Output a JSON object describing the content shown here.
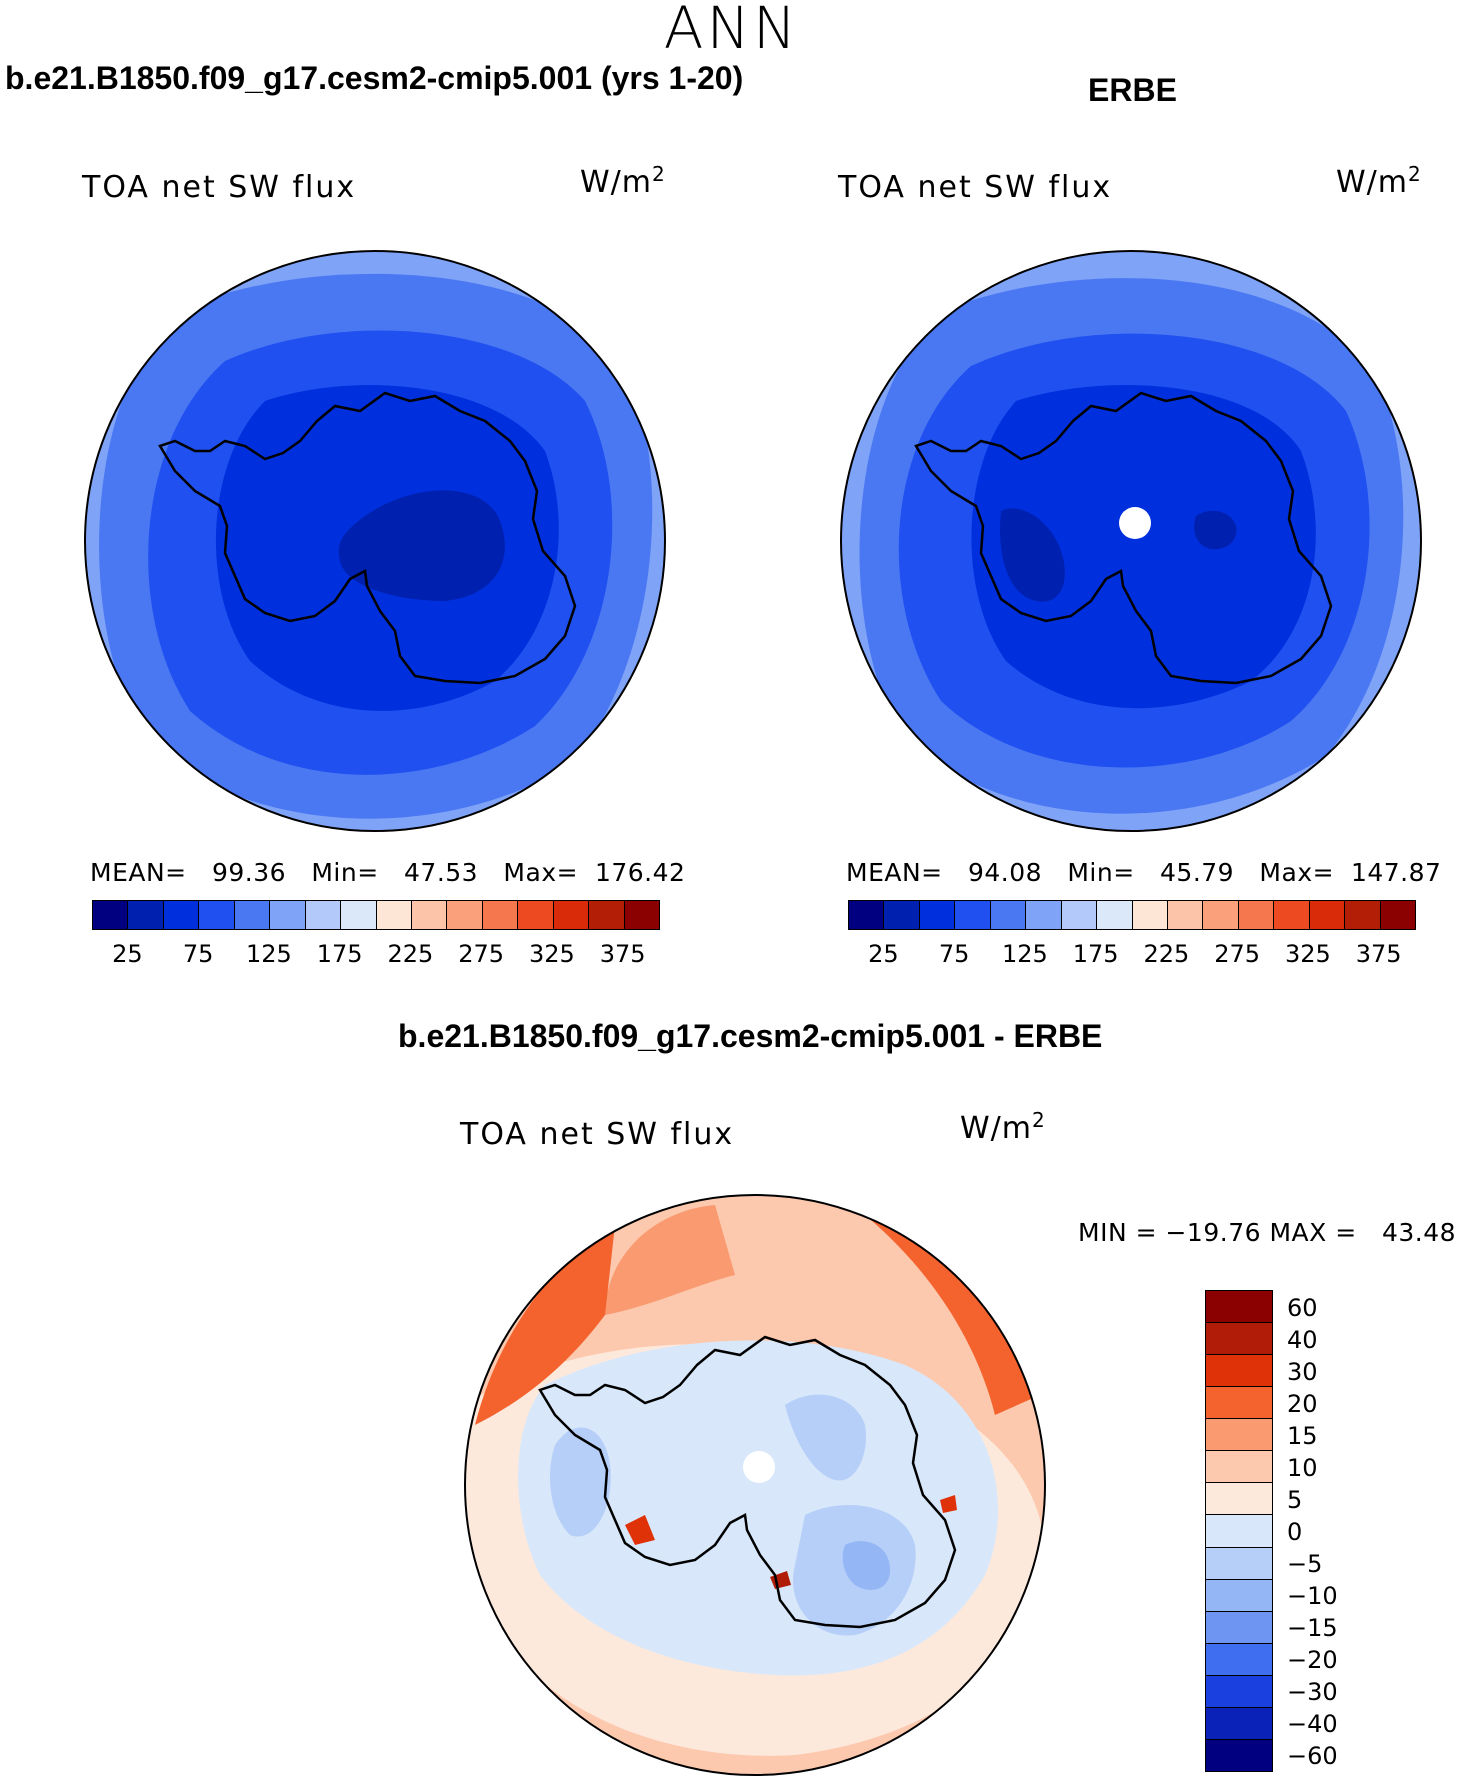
{
  "figure": {
    "season": "ANN",
    "case_title": "b.e21.B1850.f09_g17.cesm2-cmip5.001 (yrs 1-20)",
    "obs_title": "ERBE",
    "diff_title": "b.e21.B1850.f09_g17.cesm2-cmip5.001 - ERBE"
  },
  "panels": {
    "model": {
      "variable": "TOA net SW flux",
      "units_base": "W/m",
      "units_exp": "2",
      "stats": "MEAN=   99.36   Min=   47.53   Max=  176.42"
    },
    "obs": {
      "variable": "TOA net SW flux",
      "units_base": "W/m",
      "units_exp": "2",
      "stats": "MEAN=   94.08   Min=   45.79   Max=  147.87"
    },
    "diff": {
      "variable": "TOA net SW flux",
      "units_base": "W/m",
      "units_exp": "2",
      "stats": "MIN = −19.76 MAX =   43.48"
    }
  },
  "colorbars": {
    "abs": {
      "colors": [
        "#000080",
        "#0020b0",
        "#0030dd",
        "#2050f0",
        "#4a78f2",
        "#7fa3f7",
        "#b3c9f9",
        "#dbe8fa",
        "#fde6d6",
        "#fcc4a8",
        "#faa07a",
        "#f5774e",
        "#ee4a22",
        "#d92a0a",
        "#b31e06",
        "#8b0000"
      ],
      "ticks": [
        "25",
        "75",
        "125",
        "175",
        "225",
        "275",
        "325",
        "375"
      ]
    },
    "diff": {
      "colors": [
        "#8b0000",
        "#b01c08",
        "#e03208",
        "#f4632e",
        "#f99a70",
        "#fcc8ae",
        "#fde9dc",
        "#d8e8fa",
        "#b6cff8",
        "#94b6f5",
        "#6e95f1",
        "#3f6ef0",
        "#1a40e0",
        "#0a22b8",
        "#000080"
      ],
      "ticks": [
        "60",
        "40",
        "30",
        "20",
        "15",
        "10",
        "5",
        "0",
        "−5",
        "−10",
        "−15",
        "−20",
        "−30",
        "−40",
        "−60"
      ]
    }
  },
  "chart_data": [
    {
      "type": "polar-map",
      "title": "b.e21.B1850.f09_g17.cesm2-cmip5.001 (yrs 1-20)",
      "variable": "TOA net SW flux",
      "units": "W/m2",
      "region": "Antarctica / Southern Ocean",
      "mean": 99.36,
      "min": 47.53,
      "max": 176.42,
      "contour_levels": [
        25,
        50,
        75,
        100,
        125,
        150,
        175,
        200,
        225,
        250,
        275,
        300,
        325,
        350,
        375
      ]
    },
    {
      "type": "polar-map",
      "title": "ERBE",
      "variable": "TOA net SW flux",
      "units": "W/m2",
      "mean": 94.08,
      "min": 45.79,
      "max": 147.87,
      "contour_levels": [
        25,
        50,
        75,
        100,
        125,
        150,
        175,
        200,
        225,
        250,
        275,
        300,
        325,
        350,
        375
      ]
    },
    {
      "type": "polar-map",
      "title": "b.e21.B1850.f09_g17.cesm2-cmip5.001 - ERBE",
      "variable": "TOA net SW flux",
      "units": "W/m2",
      "min": -19.76,
      "max": 43.48,
      "contour_levels": [
        -60,
        -40,
        -30,
        -20,
        -15,
        -10,
        -5,
        0,
        5,
        10,
        15,
        20,
        30,
        40,
        60
      ]
    }
  ]
}
